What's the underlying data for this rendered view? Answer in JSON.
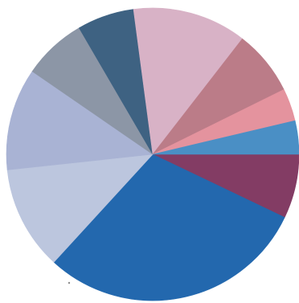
{
  "chart_data": {
    "type": "pie",
    "title": "",
    "legend": "none",
    "data_labels": false,
    "start_angle_deg": 0,
    "direction": "clockwise",
    "slices": [
      {
        "value": 7.1,
        "color": "#833c64"
      },
      {
        "value": 29.7,
        "color": "#2368ae"
      },
      {
        "value": 11.5,
        "color": "#bcc6de"
      },
      {
        "value": 11.3,
        "color": "#a9b3d4"
      },
      {
        "value": 7.0,
        "color": "#8c96a6"
      },
      {
        "value": 6.3,
        "color": "#3e6282"
      },
      {
        "value": 12.6,
        "color": "#d8b2c6"
      },
      {
        "value": 7.2,
        "color": "#bb7c88"
      },
      {
        "value": 3.6,
        "color": "#e4939e"
      },
      {
        "value": 3.7,
        "color": "#4a8fc5"
      }
    ]
  }
}
